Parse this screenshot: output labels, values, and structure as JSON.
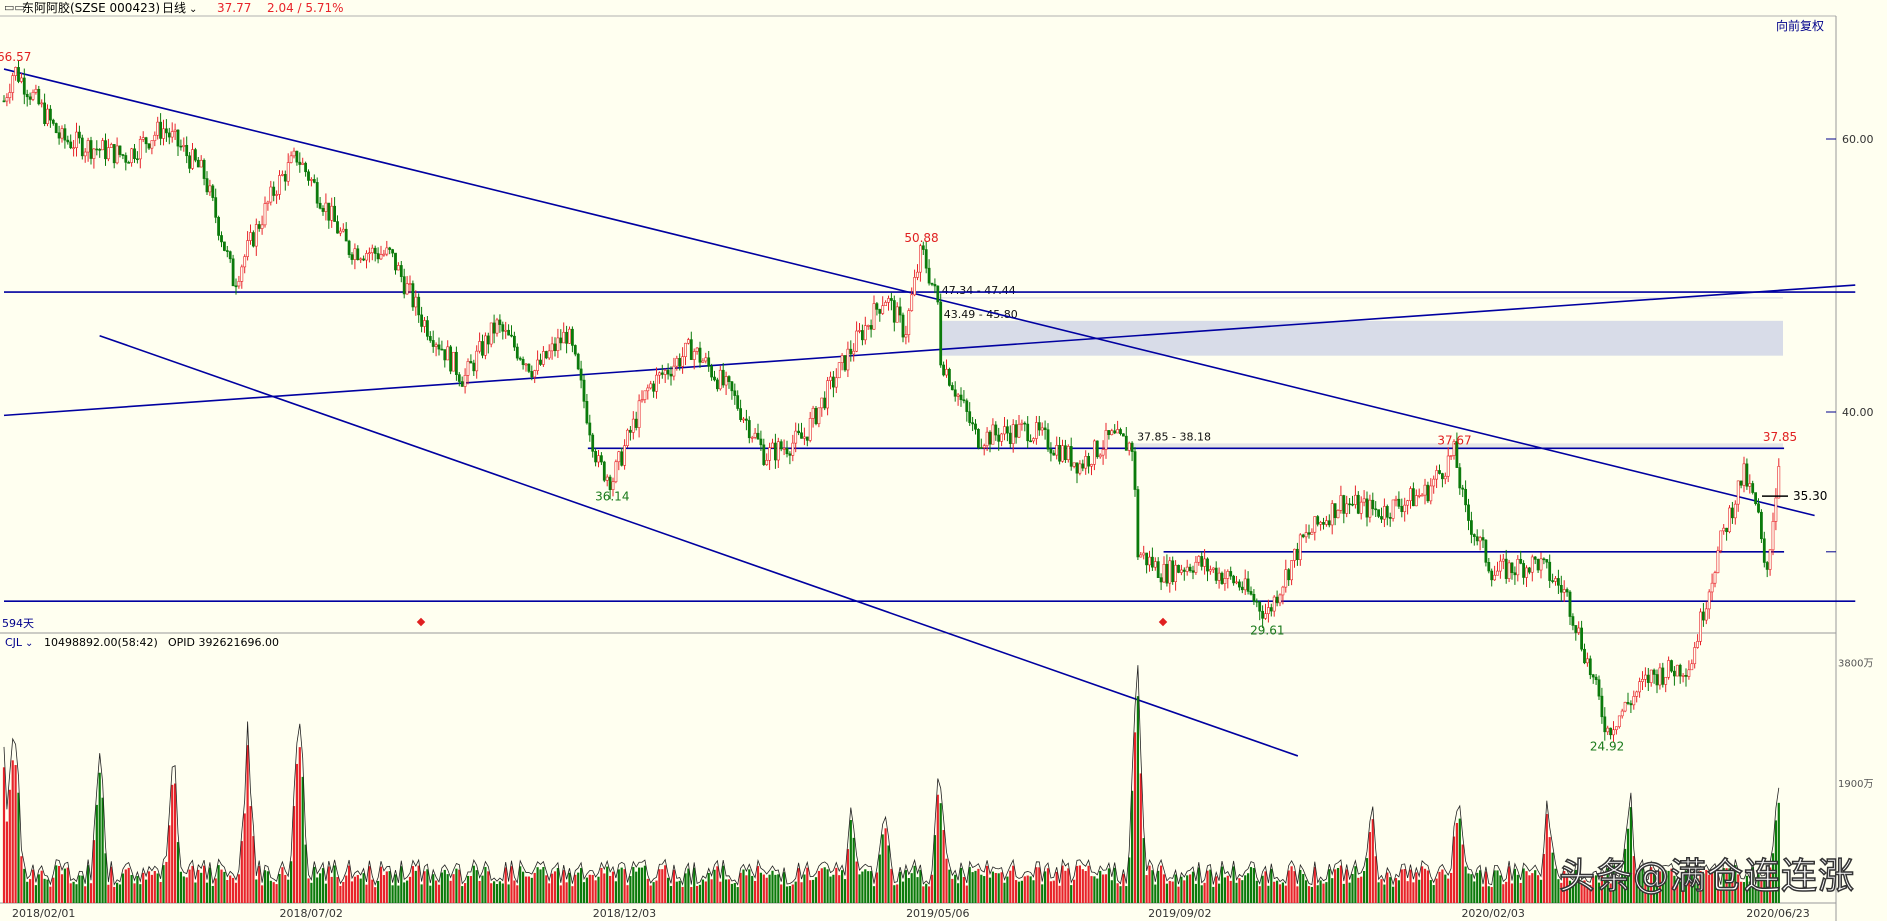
{
  "header": {
    "icon": "window-icon",
    "stock_name": "东阿阿胶(SZSE 000423)",
    "period": "日线",
    "price": "37.77",
    "change": "2.04 / 5.71%",
    "adjust": "向前复权"
  },
  "colors": {
    "background": "#fffff0",
    "up": "#e8232a",
    "down": "#0b7a0b",
    "trendline": "#0000a0",
    "gap": "#d8dce8",
    "high_label": "#e02020",
    "low_label": "#1a7a1a"
  },
  "chart_data": {
    "type": "candlestick",
    "x_ticks": [
      "2018/02/01",
      "2018/07/02",
      "2018/12/03",
      "2019/05/06",
      "2019/09/02",
      "2020/02/03",
      "2020/06/23"
    ],
    "y_ticks": [
      "60.00",
      "40.00"
    ],
    "scale": "log",
    "price_points": [
      {
        "date": "2018/02/01",
        "price": 63.5
      },
      {
        "date": "2018/02/06",
        "price": 66.57
      },
      {
        "date": "2018/03/01",
        "price": 60.0
      },
      {
        "date": "2018/04/02",
        "price": 58.5
      },
      {
        "date": "2018/04/20",
        "price": 61.0
      },
      {
        "date": "2018/05/10",
        "price": 57.0
      },
      {
        "date": "2018/05/25",
        "price": 48.5
      },
      {
        "date": "2018/06/15",
        "price": 56.0
      },
      {
        "date": "2018/06/25",
        "price": 58.5
      },
      {
        "date": "2018/07/20",
        "price": 51.0
      },
      {
        "date": "2018/08/10",
        "price": 50.5
      },
      {
        "date": "2018/08/25",
        "price": 46.0
      },
      {
        "date": "2018/09/15",
        "price": 42.0
      },
      {
        "date": "2018/10/01",
        "price": 45.5
      },
      {
        "date": "2018/10/20",
        "price": 42.5
      },
      {
        "date": "2018/11/05",
        "price": 45.0
      },
      {
        "date": "2018/11/20",
        "price": 37.0
      },
      {
        "date": "2018/11/27",
        "price": 36.14
      },
      {
        "date": "2018/12/15",
        "price": 41.5
      },
      {
        "date": "2019/01/05",
        "price": 44.0
      },
      {
        "date": "2019/01/25",
        "price": 41.0
      },
      {
        "date": "2019/02/10",
        "price": 37.5
      },
      {
        "date": "2019/03/01",
        "price": 38.5
      },
      {
        "date": "2019/03/25",
        "price": 44.0
      },
      {
        "date": "2019/04/10",
        "price": 47.5
      },
      {
        "date": "2019/04/20",
        "price": 45.0
      },
      {
        "date": "2019/04/28",
        "price": 50.88
      },
      {
        "date": "2019/05/06",
        "price": 47.0
      },
      {
        "date": "2019/05/07",
        "price": 43.5
      },
      {
        "date": "2019/05/25",
        "price": 38.5
      },
      {
        "date": "2019/06/20",
        "price": 39.0
      },
      {
        "date": "2019/07/15",
        "price": 37.0
      },
      {
        "date": "2019/07/30",
        "price": 38.5
      },
      {
        "date": "2019/08/10",
        "price": 38.0
      },
      {
        "date": "2019/08/12",
        "price": 32.5
      },
      {
        "date": "2019/08/25",
        "price": 31.5
      },
      {
        "date": "2019/09/10",
        "price": 32.0
      },
      {
        "date": "2019/10/01",
        "price": 31.0
      },
      {
        "date": "2019/10/15",
        "price": 29.61
      },
      {
        "date": "2019/11/01",
        "price": 33.0
      },
      {
        "date": "2019/11/20",
        "price": 35.0
      },
      {
        "date": "2019/12/10",
        "price": 34.5
      },
      {
        "date": "2020/01/01",
        "price": 35.5
      },
      {
        "date": "2020/01/15",
        "price": 37.67
      },
      {
        "date": "2020/01/20",
        "price": 34.5
      },
      {
        "date": "2020/02/03",
        "price": 31.5
      },
      {
        "date": "2020/02/25",
        "price": 32.0
      },
      {
        "date": "2020/03/10",
        "price": 30.5
      },
      {
        "date": "2020/03/30",
        "price": 24.92
      },
      {
        "date": "2020/04/20",
        "price": 27.0
      },
      {
        "date": "2020/05/10",
        "price": 27.5
      },
      {
        "date": "2020/05/25",
        "price": 33.0
      },
      {
        "date": "2020/06/05",
        "price": 36.5
      },
      {
        "date": "2020/06/12",
        "price": 34.5
      },
      {
        "date": "2020/06/16",
        "price": 31.0
      },
      {
        "date": "2020/06/22",
        "price": 36.5
      },
      {
        "date": "2020/06/23",
        "price": 37.85
      }
    ],
    "price_labels": [
      {
        "text": "66.57",
        "kind": "high",
        "date": "2018/02/06",
        "price": 66.57
      },
      {
        "text": "50.88",
        "kind": "high",
        "date": "2019/04/28",
        "price": 50.88
      },
      {
        "text": "36.14",
        "kind": "low",
        "date": "2018/11/27",
        "price": 36.14
      },
      {
        "text": "29.61",
        "kind": "low",
        "date": "2019/10/15",
        "price": 29.61
      },
      {
        "text": "37.67",
        "kind": "high",
        "date": "2020/01/15",
        "price": 37.67
      },
      {
        "text": "24.92",
        "kind": "low",
        "date": "2020/03/30",
        "price": 24.92
      },
      {
        "text": "37.85",
        "kind": "high",
        "date": "2020/06/23",
        "price": 37.85
      }
    ],
    "gap_zones": [
      {
        "label": "47.34 - 47.44",
        "low": 47.34,
        "high": 47.44,
        "start": "2019/05/06"
      },
      {
        "label": "43.49 - 45.80",
        "low": 43.49,
        "high": 45.8,
        "start": "2019/05/07"
      },
      {
        "label": "37.85 - 38.18",
        "low": 37.85,
        "high": 38.18,
        "start": "2019/08/10"
      }
    ],
    "trendlines": [
      {
        "name": "resistance",
        "from": {
          "date": "2018/02/01",
          "price": 66.57
        },
        "to": {
          "date": "2020/07/10",
          "price": 34.3
        }
      },
      {
        "name": "support",
        "from": {
          "date": "2018/03/20",
          "price": 44.8
        },
        "to": {
          "date": "2019/10/30",
          "price": 24.0
        }
      },
      {
        "name": "rising",
        "from": {
          "date": "2018/02/01",
          "price": 39.8
        },
        "to": {
          "date": "2020/07/30",
          "price": 48.3
        }
      },
      {
        "name": "h-47.8",
        "from": {
          "date": "2018/02/01",
          "price": 47.8
        },
        "to": {
          "date": "2020/07/30",
          "price": 47.8
        }
      },
      {
        "name": "h-37.9",
        "from": {
          "date": "2018/11/15",
          "price": 37.9
        },
        "to": {
          "date": "2020/06/25",
          "price": 37.9
        }
      },
      {
        "name": "h-32.5",
        "from": {
          "date": "2019/08/25",
          "price": 32.5
        },
        "to": {
          "date": "2020/06/25",
          "price": 32.5
        }
      },
      {
        "name": "h-30.2",
        "from": {
          "date": "2018/02/01",
          "price": 30.2
        },
        "to": {
          "date": "2020/07/30",
          "price": 30.2
        }
      }
    ],
    "marker": "35.30",
    "day_count": "594天",
    "volume_header": {
      "indicator": "CJL",
      "value": "10498892.00(58:42)",
      "opid": "OPID 392621696.00"
    },
    "volume_ticks": [
      "3800万",
      "1900万"
    ],
    "volume_max": 4000,
    "volume_spikes": [
      {
        "date": "2018/02/01",
        "value": 2300
      },
      {
        "date": "2018/02/06",
        "value": 3300
      },
      {
        "date": "2018/03/20",
        "value": 2400
      },
      {
        "date": "2018/04/25",
        "value": 2600
      },
      {
        "date": "2018/06/01",
        "value": 2700
      },
      {
        "date": "2018/06/26",
        "value": 3200
      },
      {
        "date": "2019/03/25",
        "value": 1600
      },
      {
        "date": "2019/04/10",
        "value": 1700
      },
      {
        "date": "2019/05/07",
        "value": 2300
      },
      {
        "date": "2019/08/12",
        "value": 3800
      },
      {
        "date": "2019/12/05",
        "value": 1700
      },
      {
        "date": "2020/01/17",
        "value": 2100
      },
      {
        "date": "2020/03/01",
        "value": 1700
      },
      {
        "date": "2020/04/10",
        "value": 1800
      },
      {
        "date": "2020/06/22",
        "value": 1800
      }
    ]
  },
  "watermark": "头条@满仓连连涨"
}
